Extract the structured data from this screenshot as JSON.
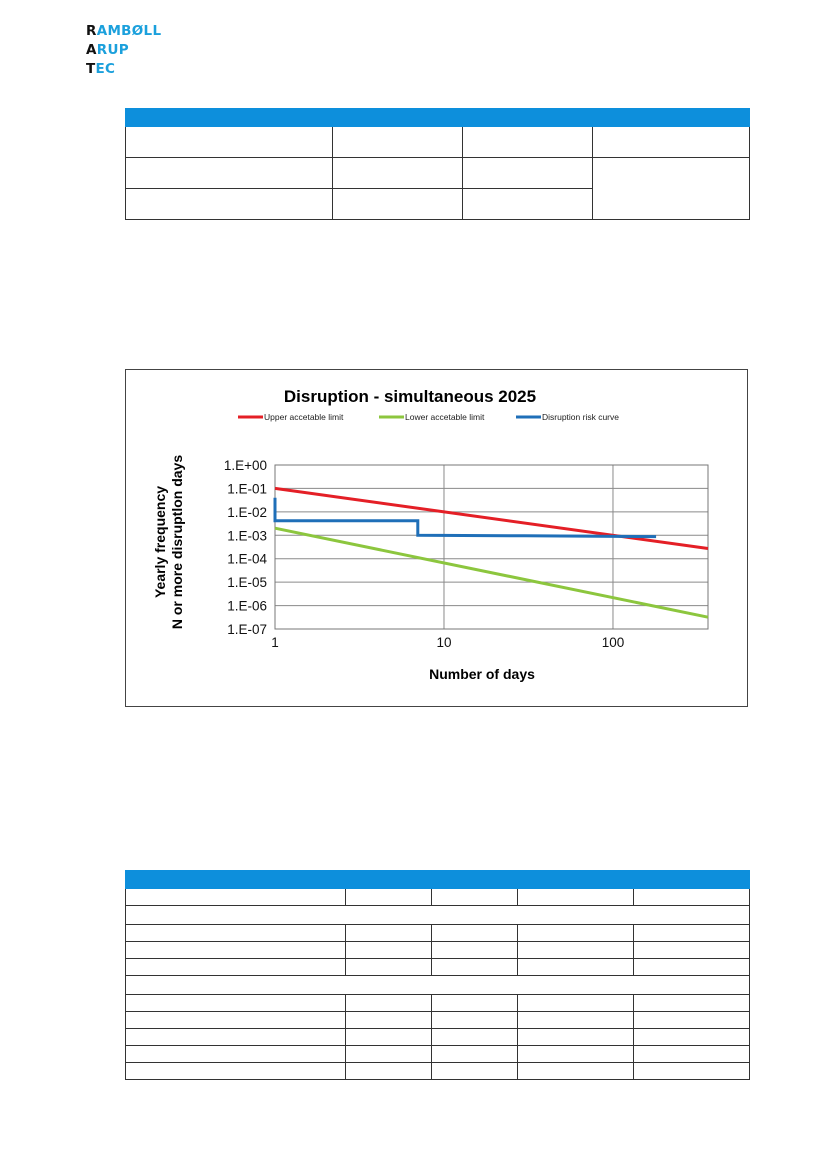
{
  "logo": {
    "line1_initial": "R",
    "line1_rest": "AMBØLL",
    "line2_initial": "A",
    "line2_rest": "RUP",
    "line3_initial": "T",
    "line3_rest": "EC"
  },
  "colors": {
    "header_blue": "#0d8fdc",
    "logo_blue": "#1ba0dc",
    "upper": "#e41f26",
    "lower": "#8cc63e",
    "risk": "#1f6fb8"
  },
  "chart_data": {
    "type": "line",
    "title": "Disruption - simultaneous 2025",
    "xlabel": "Number of days",
    "ylabel": [
      "Yearly frequency",
      "N or more disruptlon days"
    ],
    "x_scale": "log",
    "y_scale": "log",
    "xlim": [
      1,
      365
    ],
    "ylim": [
      1e-07,
      1
    ],
    "x_ticks": [
      1,
      10,
      100
    ],
    "x_tick_labels": [
      "1",
      "10",
      "100"
    ],
    "y_ticks": [
      1,
      0.1,
      0.01,
      0.001,
      0.0001,
      1e-05,
      1e-06,
      1e-07
    ],
    "y_tick_labels": [
      "1.E+00",
      "1.E-01",
      "1.E-02",
      "1.E-03",
      "1.E-04",
      "1.E-05",
      "1.E-06",
      "1.E-07"
    ],
    "grid": true,
    "legend_position": "top",
    "series": [
      {
        "name": "Upper accetable limit",
        "color": "#e41f26",
        "x": [
          1,
          365
        ],
        "y": [
          0.1,
          0.000274
        ]
      },
      {
        "name": "Lower accetable limit",
        "color": "#8cc63e",
        "x": [
          1,
          365
        ],
        "y": [
          0.002,
          3.2e-07
        ]
      },
      {
        "name": "Disruption risk curve",
        "color": "#1f6fb8",
        "step": true,
        "x": [
          1,
          1,
          7,
          7,
          30,
          180
        ],
        "y": [
          0.04,
          0.0042,
          0.0042,
          0.001,
          0.00095,
          0.00088
        ]
      }
    ]
  },
  "table1": {
    "rows": [
      [
        "",
        "",
        "",
        ""
      ],
      [
        "",
        "",
        "",
        ""
      ],
      [
        "",
        "",
        "",
        ""
      ],
      [
        "",
        "",
        ""
      ]
    ]
  },
  "table2": {
    "rows": [
      [
        "",
        "",
        "",
        "",
        ""
      ],
      [
        "",
        "",
        "",
        "",
        ""
      ],
      [
        ""
      ],
      [
        "",
        "",
        "",
        "",
        ""
      ],
      [
        "",
        "",
        "",
        "",
        ""
      ],
      [
        "",
        "",
        "",
        "",
        ""
      ],
      [
        ""
      ],
      [
        "",
        "",
        "",
        "",
        ""
      ],
      [
        "",
        "",
        "",
        "",
        ""
      ],
      [
        "",
        "",
        "",
        "",
        ""
      ],
      [
        "",
        "",
        "",
        "",
        ""
      ],
      [
        "",
        "",
        "",
        "",
        ""
      ]
    ]
  }
}
